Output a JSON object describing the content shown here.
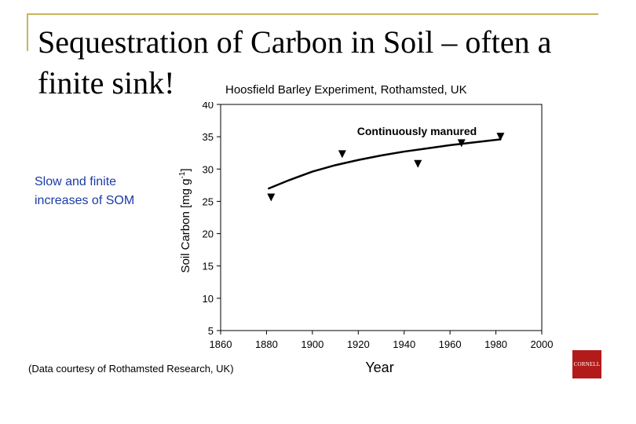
{
  "slide": {
    "title_line1": "Sequestration of Carbon in Soil – often a",
    "title_line2": "finite sink!",
    "side_note": "Slow and finite\nincreases of SOM",
    "credit": "(Data courtesy of Rothamsted Research, UK)",
    "logo_text": "CORNELL",
    "accent_color": "#c9b45a",
    "logo_color": "#b31b1b",
    "note_color": "#1b3aa6"
  },
  "chart_data": {
    "type": "scatter",
    "title": "Hoosfield Barley Experiment, Rothamsted, UK",
    "xlabel": "Year",
    "ylabel": "Soil Carbon [mg g-1]",
    "xlim": [
      1860,
      2000
    ],
    "ylim": [
      5,
      40
    ],
    "xticks": [
      1860,
      1880,
      1900,
      1920,
      1940,
      1960,
      1980,
      2000
    ],
    "yticks": [
      5,
      10,
      15,
      20,
      25,
      30,
      35,
      40
    ],
    "grid": false,
    "annotation": "Continuously manured",
    "series": [
      {
        "marker": "down-triangle",
        "points": [
          {
            "x": 1882,
            "y": 25.6
          },
          {
            "x": 1913,
            "y": 32.3
          },
          {
            "x": 1946,
            "y": 30.8
          },
          {
            "x": 1965,
            "y": 34.0
          },
          {
            "x": 1982,
            "y": 35.0
          }
        ]
      },
      {
        "type": "line",
        "points": [
          {
            "x": 1881,
            "y": 27.0
          },
          {
            "x": 1890,
            "y": 28.3
          },
          {
            "x": 1900,
            "y": 29.6
          },
          {
            "x": 1910,
            "y": 30.6
          },
          {
            "x": 1920,
            "y": 31.4
          },
          {
            "x": 1930,
            "y": 32.1
          },
          {
            "x": 1940,
            "y": 32.7
          },
          {
            "x": 1950,
            "y": 33.2
          },
          {
            "x": 1960,
            "y": 33.7
          },
          {
            "x": 1970,
            "y": 34.1
          },
          {
            "x": 1982,
            "y": 34.6
          }
        ]
      }
    ]
  }
}
